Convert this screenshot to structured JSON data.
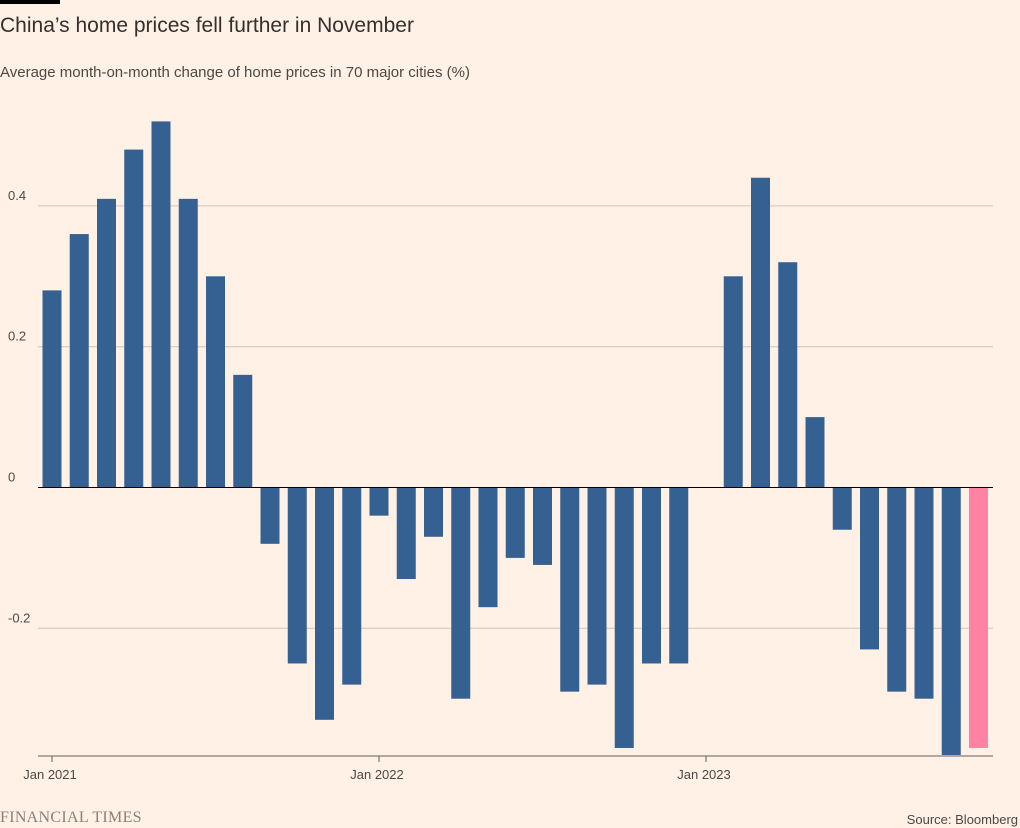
{
  "header": {
    "title": "China’s home prices fell further in November",
    "subtitle": "Average month-on-month change of home prices in 70 major cities (%)"
  },
  "footer": {
    "brand": "FINANCIAL TIMES",
    "source": "Source: Bloomberg"
  },
  "colors": {
    "background": "#fff1e5",
    "bar": "#356192",
    "highlight": "#ff82a4",
    "grid": "#cec6b9",
    "zero_line": "#000000"
  },
  "chart_data": {
    "type": "bar",
    "title": "China’s home prices fell further in November",
    "subtitle": "Average month-on-month change of home prices in 70 major cities (%)",
    "xlabel": "",
    "ylabel": "",
    "categories": [
      "2021-01",
      "2021-02",
      "2021-03",
      "2021-04",
      "2021-05",
      "2021-06",
      "2021-07",
      "2021-08",
      "2021-09",
      "2021-10",
      "2021-11",
      "2021-12",
      "2022-01",
      "2022-02",
      "2022-03",
      "2022-04",
      "2022-05",
      "2022-06",
      "2022-07",
      "2022-08",
      "2022-09",
      "2022-10",
      "2022-11",
      "2022-12",
      "2023-01",
      "2023-02",
      "2023-03",
      "2023-04",
      "2023-05",
      "2023-06",
      "2023-07",
      "2023-08",
      "2023-09",
      "2023-10",
      "2023-11"
    ],
    "values": [
      0.28,
      0.36,
      0.41,
      0.48,
      0.52,
      0.41,
      0.3,
      0.16,
      -0.08,
      -0.25,
      -0.33,
      -0.28,
      -0.04,
      -0.13,
      -0.07,
      -0.3,
      -0.17,
      -0.1,
      -0.11,
      -0.29,
      -0.28,
      -0.37,
      -0.25,
      -0.25,
      0.0,
      0.3,
      0.44,
      0.32,
      0.1,
      -0.06,
      -0.23,
      -0.29,
      -0.3,
      -0.38,
      -0.37
    ],
    "highlight_index": 34,
    "ylim": [
      -0.38,
      0.52
    ],
    "yticks": [
      -0.2,
      0,
      0.2,
      0.4
    ],
    "ytick_labels": [
      "-0.2",
      "0",
      "0.2",
      "0.4"
    ],
    "xtick_labels": [
      {
        "label": "Jan 2021",
        "index": 0
      },
      {
        "label": "Jan 2022",
        "index": 12
      },
      {
        "label": "Jan 2023",
        "index": 24
      }
    ],
    "grid": true,
    "legend": "none"
  }
}
